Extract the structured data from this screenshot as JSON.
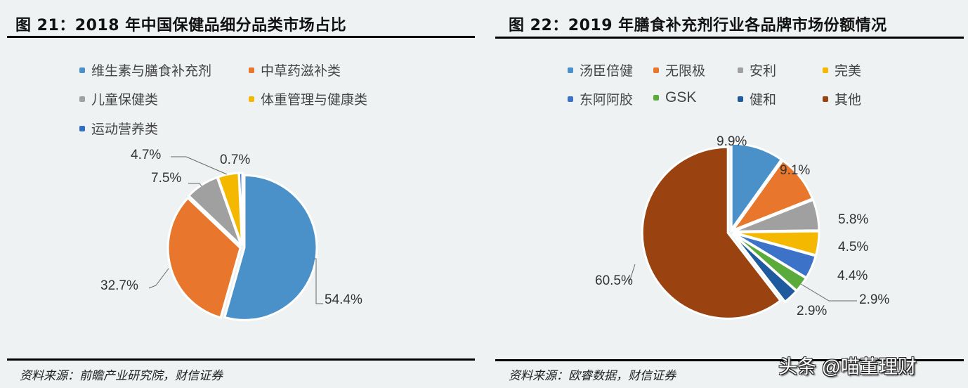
{
  "left": {
    "title": "图 21：2018 年中国保健品细分品类市场占比",
    "source": "资料来源：前瞻产业研究院，财信证券"
  },
  "right": {
    "title": "图 22：2019 年膳食补充剂行业各品牌市场份额情况",
    "source": "资料来源：欧睿数据，财信证券"
  },
  "watermark": "头条 @喵董理财",
  "chart_data": [
    {
      "type": "pie",
      "title": "图 21：2018 年中国保健品细分品类市场占比",
      "categories": [
        "维生素与膳食补充剂",
        "中草药滋补类",
        "儿童保健类",
        "体重管理与健康类",
        "运动营养类"
      ],
      "values": [
        54.4,
        32.7,
        7.5,
        4.7,
        0.7
      ],
      "labels": [
        "54.4%",
        "32.7%",
        "7.5%",
        "4.7%",
        "0.7%"
      ],
      "colors": [
        "#4a90c9",
        "#e8762c",
        "#a0a0a0",
        "#f5b800",
        "#2f6fc7"
      ],
      "legend_position": "top",
      "start_angle": "12 o'clock, clockwise"
    },
    {
      "type": "pie",
      "title": "图 22：2019 年膳食补充剂行业各品牌市场份额情况",
      "categories": [
        "汤臣倍健",
        "无限极",
        "安利",
        "完美",
        "东阿阿胶",
        "GSK",
        "健和",
        "其他"
      ],
      "values": [
        9.9,
        9.1,
        5.8,
        4.5,
        4.4,
        2.9,
        2.9,
        60.5
      ],
      "labels": [
        "9.9%",
        "9.1%",
        "5.8%",
        "4.5%",
        "4.4%",
        "2.9%",
        "2.9%",
        "60.5%"
      ],
      "colors": [
        "#4a90c9",
        "#e8762c",
        "#a0a0a0",
        "#f5b800",
        "#3c72c8",
        "#5aaa3c",
        "#1f5a9e",
        "#9a4310"
      ],
      "legend_position": "top",
      "start_angle": "12 o'clock, clockwise"
    }
  ]
}
